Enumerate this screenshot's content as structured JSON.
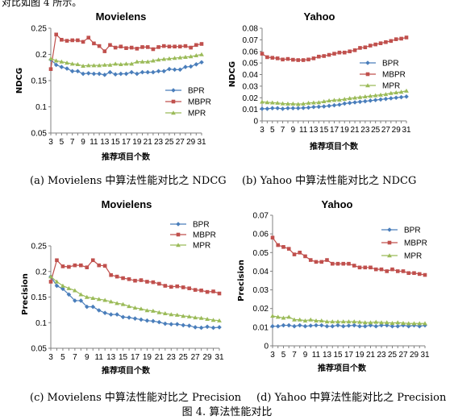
{
  "page": {
    "top_fragment": "对比如图 4 所示。",
    "figure_caption": "图 4. 算法性能对比"
  },
  "colors": {
    "BPR": "#4a7ebb",
    "MBPR": "#c0504d",
    "MPR": "#9bbb59",
    "axis": "#808080"
  },
  "chart_data": [
    {
      "type": "line",
      "title": "Movielens",
      "xlabel": "推荐项目个数",
      "ylabel": "NDCG",
      "caption": "(a) Movielens 中算法性能对比之 NDCG",
      "ylim": [
        0.05,
        0.25
      ],
      "yticks": [
        "0.05",
        "0.1",
        "0.15",
        "0.2",
        "0.25"
      ],
      "x": [
        3,
        4,
        5,
        6,
        7,
        8,
        9,
        10,
        11,
        12,
        13,
        14,
        15,
        16,
        17,
        18,
        19,
        20,
        21,
        22,
        23,
        24,
        25,
        26,
        27,
        28,
        29,
        30,
        31
      ],
      "xticks": [
        "3",
        "5",
        "7",
        "9",
        "11",
        "13",
        "15",
        "17",
        "19",
        "21",
        "23",
        "25",
        "27",
        "29",
        "31"
      ],
      "legend_position": "right",
      "series": [
        {
          "name": "BPR",
          "values": [
            0.19,
            0.18,
            0.176,
            0.173,
            0.168,
            0.168,
            0.163,
            0.164,
            0.163,
            0.163,
            0.161,
            0.166,
            0.162,
            0.163,
            0.163,
            0.166,
            0.163,
            0.166,
            0.166,
            0.166,
            0.168,
            0.168,
            0.172,
            0.171,
            0.171,
            0.176,
            0.177,
            0.181,
            0.185
          ]
        },
        {
          "name": "MBPR",
          "values": [
            0.172,
            0.238,
            0.228,
            0.226,
            0.227,
            0.227,
            0.224,
            0.232,
            0.221,
            0.216,
            0.206,
            0.218,
            0.213,
            0.215,
            0.212,
            0.213,
            0.211,
            0.214,
            0.214,
            0.21,
            0.214,
            0.216,
            0.215,
            0.215,
            0.215,
            0.216,
            0.213,
            0.218,
            0.22
          ]
        },
        {
          "name": "MPR",
          "values": [
            0.192,
            0.188,
            0.186,
            0.184,
            0.182,
            0.181,
            0.178,
            0.179,
            0.179,
            0.179,
            0.18,
            0.18,
            0.182,
            0.181,
            0.182,
            0.182,
            0.186,
            0.186,
            0.186,
            0.188,
            0.19,
            0.191,
            0.192,
            0.193,
            0.194,
            0.195,
            0.196,
            0.198,
            0.2
          ]
        }
      ]
    },
    {
      "type": "line",
      "title": "Yahoo",
      "xlabel": "推荐项目个数",
      "ylabel": "NDCG",
      "caption": "(b) Yahoo 中算法性能对比之 NDCG",
      "ylim": [
        0,
        0.08
      ],
      "yticks": [
        "0",
        "0.01",
        "0.02",
        "0.03",
        "0.04",
        "0.05",
        "0.06",
        "0.07",
        "0.08"
      ],
      "x": [
        3,
        4,
        5,
        6,
        7,
        8,
        9,
        10,
        11,
        12,
        13,
        14,
        15,
        16,
        17,
        18,
        19,
        20,
        21,
        22,
        23,
        24,
        25,
        26,
        27,
        28,
        29,
        30,
        31
      ],
      "xticks": [
        "3",
        "5",
        "7",
        "9",
        "11",
        "13",
        "15",
        "17",
        "19",
        "21",
        "23",
        "25",
        "27",
        "29",
        "31"
      ],
      "legend_position": "right",
      "series": [
        {
          "name": "BPR",
          "values": [
            0.0105,
            0.0105,
            0.011,
            0.011,
            0.0105,
            0.011,
            0.011,
            0.011,
            0.0112,
            0.0115,
            0.012,
            0.0122,
            0.0125,
            0.013,
            0.0135,
            0.014,
            0.015,
            0.0155,
            0.016,
            0.0165,
            0.017,
            0.0175,
            0.018,
            0.0185,
            0.019,
            0.0195,
            0.02,
            0.0205,
            0.021
          ]
        },
        {
          "name": "MBPR",
          "values": [
            0.058,
            0.055,
            0.0545,
            0.054,
            0.053,
            0.0535,
            0.0528,
            0.0525,
            0.0525,
            0.053,
            0.054,
            0.0555,
            0.056,
            0.057,
            0.058,
            0.059,
            0.059,
            0.06,
            0.061,
            0.063,
            0.0635,
            0.065,
            0.066,
            0.067,
            0.068,
            0.069,
            0.0705,
            0.071,
            0.072
          ]
        },
        {
          "name": "MPR",
          "values": [
            0.0165,
            0.016,
            0.0158,
            0.0155,
            0.015,
            0.0148,
            0.0148,
            0.0145,
            0.0148,
            0.0155,
            0.0158,
            0.016,
            0.0168,
            0.0175,
            0.018,
            0.0182,
            0.0188,
            0.0195,
            0.02,
            0.0205,
            0.021,
            0.0215,
            0.022,
            0.0225,
            0.023,
            0.024,
            0.0245,
            0.025,
            0.026
          ]
        }
      ]
    },
    {
      "type": "line",
      "title": "Movielens",
      "xlabel": "推荐项目个数",
      "ylabel": "Precision",
      "caption": "(c) Movielens 中算法性能对比之 Precision",
      "ylim": [
        0.05,
        0.25
      ],
      "yticks": [
        "0.05",
        "0.1",
        "0.15",
        "0.2",
        "0.25"
      ],
      "x": [
        3,
        4,
        5,
        6,
        7,
        8,
        9,
        10,
        11,
        12,
        13,
        14,
        15,
        16,
        17,
        18,
        19,
        20,
        21,
        22,
        23,
        24,
        25,
        26,
        27,
        28,
        29,
        30,
        31
      ],
      "xticks": [
        "3",
        "5",
        "7",
        "9",
        "11",
        "13",
        "15",
        "17",
        "19",
        "21",
        "23",
        "25",
        "27",
        "29",
        "31"
      ],
      "legend_position": "top-right",
      "series": [
        {
          "name": "BPR",
          "values": [
            0.19,
            0.172,
            0.166,
            0.155,
            0.143,
            0.143,
            0.131,
            0.131,
            0.124,
            0.119,
            0.116,
            0.116,
            0.111,
            0.11,
            0.108,
            0.106,
            0.104,
            0.103,
            0.101,
            0.098,
            0.097,
            0.097,
            0.095,
            0.094,
            0.091,
            0.09,
            0.092,
            0.09,
            0.091
          ]
        },
        {
          "name": "MBPR",
          "values": [
            0.18,
            0.222,
            0.21,
            0.209,
            0.212,
            0.212,
            0.208,
            0.222,
            0.212,
            0.211,
            0.193,
            0.19,
            0.187,
            0.185,
            0.182,
            0.183,
            0.18,
            0.179,
            0.176,
            0.172,
            0.17,
            0.171,
            0.169,
            0.167,
            0.164,
            0.163,
            0.16,
            0.161,
            0.157
          ]
        },
        {
          "name": "MPR",
          "values": [
            0.19,
            0.18,
            0.172,
            0.167,
            0.163,
            0.155,
            0.15,
            0.148,
            0.146,
            0.144,
            0.141,
            0.138,
            0.136,
            0.132,
            0.129,
            0.127,
            0.124,
            0.123,
            0.12,
            0.118,
            0.116,
            0.115,
            0.113,
            0.112,
            0.11,
            0.109,
            0.107,
            0.105,
            0.104
          ]
        }
      ]
    },
    {
      "type": "line",
      "title": "Yahoo",
      "xlabel": "推荐项目个数",
      "ylabel": "Precision",
      "caption": "(d) Yahoo 中算法性能对比之 Precision",
      "ylim": [
        0,
        0.07
      ],
      "yticks": [
        "0",
        "0.01",
        "0.02",
        "0.03",
        "0.04",
        "0.05",
        "0.06",
        "0.07"
      ],
      "x": [
        3,
        4,
        5,
        6,
        7,
        8,
        9,
        10,
        11,
        12,
        13,
        14,
        15,
        16,
        17,
        18,
        19,
        20,
        21,
        22,
        23,
        24,
        25,
        26,
        27,
        28,
        29,
        30,
        31
      ],
      "xticks": [
        "3",
        "5",
        "7",
        "9",
        "11",
        "13",
        "15",
        "17",
        "19",
        "21",
        "23",
        "25",
        "27",
        "29",
        "31"
      ],
      "legend_position": "top-right",
      "series": [
        {
          "name": "BPR",
          "values": [
            0.0105,
            0.0105,
            0.011,
            0.011,
            0.0105,
            0.011,
            0.0105,
            0.0108,
            0.011,
            0.011,
            0.0105,
            0.0105,
            0.011,
            0.0105,
            0.0108,
            0.011,
            0.0105,
            0.0105,
            0.011,
            0.0105,
            0.011,
            0.011,
            0.0105,
            0.0105,
            0.011,
            0.0105,
            0.011,
            0.0105,
            0.011
          ]
        },
        {
          "name": "MBPR",
          "values": [
            0.058,
            0.054,
            0.053,
            0.052,
            0.049,
            0.05,
            0.048,
            0.046,
            0.045,
            0.045,
            0.046,
            0.044,
            0.044,
            0.044,
            0.044,
            0.043,
            0.042,
            0.042,
            0.042,
            0.041,
            0.041,
            0.04,
            0.041,
            0.04,
            0.04,
            0.039,
            0.039,
            0.0385,
            0.038
          ]
        },
        {
          "name": "MPR",
          "values": [
            0.016,
            0.0155,
            0.015,
            0.0155,
            0.014,
            0.014,
            0.0135,
            0.014,
            0.0135,
            0.0135,
            0.013,
            0.013,
            0.013,
            0.013,
            0.013,
            0.013,
            0.0128,
            0.0125,
            0.0125,
            0.0128,
            0.0125,
            0.0125,
            0.0122,
            0.0125,
            0.0122,
            0.012,
            0.012,
            0.012,
            0.012
          ]
        }
      ]
    }
  ]
}
